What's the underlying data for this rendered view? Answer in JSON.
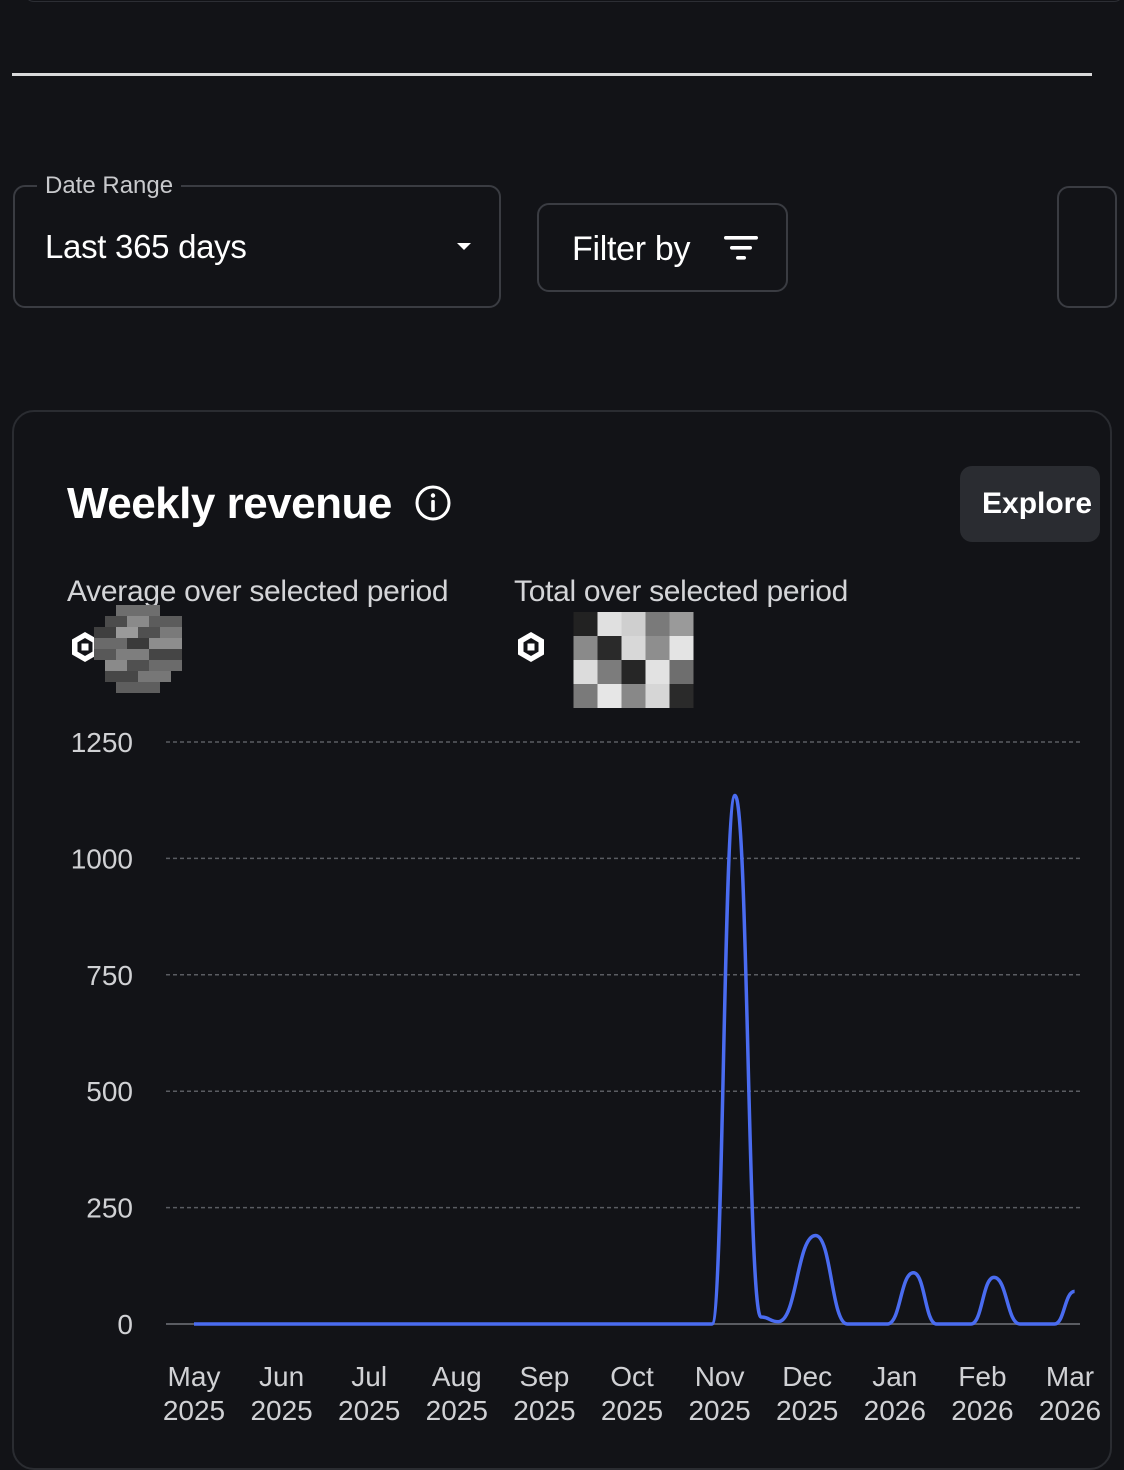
{
  "filters": {
    "date_range_label": "Date Range",
    "date_range_value": "Last 365 days",
    "filter_label": "Filter by"
  },
  "card": {
    "title": "Weekly revenue",
    "explore_label": "Explore",
    "average_label": "Average over selected period",
    "total_label": "Total over selected period"
  },
  "icons": {
    "dropdown": "caret-down-icon",
    "filter": "filter-lines-icon",
    "info": "info-circle-icon",
    "currency": "robux-hexagon-icon"
  },
  "colors": {
    "background": "#121317",
    "line": "#4a6cf0",
    "grid": "#5a5c62",
    "axis_text": "#d0d1d4"
  },
  "chart_data": {
    "type": "line",
    "title": "Weekly revenue",
    "xlabel": "",
    "ylabel": "",
    "ylim": [
      0,
      1250
    ],
    "yticks": [
      "0",
      "250",
      "500",
      "750",
      "1000",
      "1250"
    ],
    "xtick_labels": [
      [
        "May",
        "2025"
      ],
      [
        "Jun",
        "2025"
      ],
      [
        "Jul",
        "2025"
      ],
      [
        "Aug",
        "2025"
      ],
      [
        "Sep",
        "2025"
      ],
      [
        "Oct",
        "2025"
      ],
      [
        "Nov",
        "2025"
      ],
      [
        "Dec",
        "2025"
      ],
      [
        "Jan",
        "2026"
      ],
      [
        "Feb",
        "2026"
      ],
      [
        "Mar",
        "2026"
      ]
    ],
    "grid": true,
    "series": [
      {
        "points": [
          [
            "2025-05-01",
            0
          ],
          [
            "2025-06-01",
            0
          ],
          [
            "2025-07-01",
            0
          ],
          [
            "2025-08-01",
            0
          ],
          [
            "2025-09-01",
            0
          ],
          [
            "2025-10-01",
            0
          ],
          [
            "2025-10-28",
            0
          ],
          [
            "2025-11-05",
            1135
          ],
          [
            "2025-11-14",
            15
          ],
          [
            "2025-11-20",
            5
          ],
          [
            "2025-12-03",
            190
          ],
          [
            "2025-12-14",
            0
          ],
          [
            "2025-12-28",
            0
          ],
          [
            "2026-01-06",
            110
          ],
          [
            "2026-01-14",
            0
          ],
          [
            "2026-01-26",
            0
          ],
          [
            "2026-02-03",
            100
          ],
          [
            "2026-02-12",
            0
          ],
          [
            "2026-02-24",
            0
          ],
          [
            "2026-03-03",
            70
          ]
        ]
      }
    ]
  }
}
